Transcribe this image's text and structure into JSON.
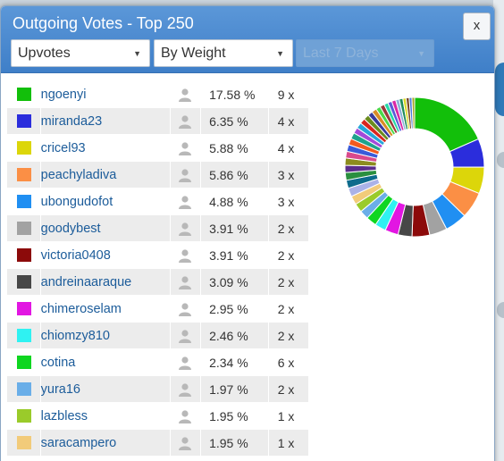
{
  "dialog": {
    "title": "Outgoing Votes - Top 250",
    "close_label": "x",
    "vote_type": "Upvotes",
    "sort_by": "By Weight",
    "period": "Last 7 Days"
  },
  "rows": [
    {
      "name": "ngoenyi",
      "pct": "17.58 %",
      "count": "9 x",
      "color": "#12bf0a"
    },
    {
      "name": "miranda23",
      "pct": "6.35 %",
      "count": "4 x",
      "color": "#2b2ddc"
    },
    {
      "name": "cricel93",
      "pct": "5.88 %",
      "count": "4 x",
      "color": "#dcd60a"
    },
    {
      "name": "peachyladiva",
      "pct": "5.86 %",
      "count": "3 x",
      "color": "#fb8f45"
    },
    {
      "name": "ubongudofot",
      "pct": "4.88 %",
      "count": "3 x",
      "color": "#208ff2"
    },
    {
      "name": "goodybest",
      "pct": "3.91 %",
      "count": "2 x",
      "color": "#a2a2a2"
    },
    {
      "name": "victoria0408",
      "pct": "3.91 %",
      "count": "2 x",
      "color": "#8c0a0a"
    },
    {
      "name": "andreinaaraque",
      "pct": "3.09 %",
      "count": "2 x",
      "color": "#474747"
    },
    {
      "name": "chimeroselam",
      "pct": "2.95 %",
      "count": "2 x",
      "color": "#e216e2"
    },
    {
      "name": "chiomzy810",
      "pct": "2.46 %",
      "count": "2 x",
      "color": "#2ff2f2"
    },
    {
      "name": "cotina",
      "pct": "2.34 %",
      "count": "6 x",
      "color": "#0fd620"
    },
    {
      "name": "yura16",
      "pct": "1.97 %",
      "count": "2 x",
      "color": "#6aaee8"
    },
    {
      "name": "lazbless",
      "pct": "1.95 %",
      "count": "1 x",
      "color": "#9acb2a"
    },
    {
      "name": "saracampero",
      "pct": "1.95 %",
      "count": "1 x",
      "color": "#f2cb7a"
    },
    {
      "name": "",
      "pct": "",
      "count": "",
      "color": "#aab2e8"
    }
  ],
  "chart_data": {
    "type": "pie",
    "values": [
      17.58,
      6.35,
      5.88,
      5.86,
      4.88,
      3.91,
      3.91,
      3.09,
      2.95,
      2.46,
      2.34,
      1.97,
      1.95,
      1.95,
      1.9,
      1.8,
      1.7,
      1.6,
      1.6,
      1.5,
      1.5,
      1.4,
      1.4,
      1.3,
      1.3,
      1.2,
      1.2,
      1.1,
      1.1,
      1.0,
      1.0,
      0.9,
      0.9,
      0.9,
      0.8,
      0.8,
      0.7,
      0.7,
      0.6,
      0.6
    ],
    "colors": [
      "#12bf0a",
      "#2b2ddc",
      "#dcd60a",
      "#fb8f45",
      "#208ff2",
      "#a2a2a2",
      "#8c0a0a",
      "#474747",
      "#e216e2",
      "#2ff2f2",
      "#0fd620",
      "#6aaee8",
      "#9acb2a",
      "#f2cb7a",
      "#aab2e8",
      "#0d6b8c",
      "#2a8f3f",
      "#5b2d8c",
      "#8c8c1f",
      "#d94a8c",
      "#3a5bd9",
      "#f25b1f",
      "#1fa38c",
      "#a34ad9",
      "#26a6d9",
      "#d9261f",
      "#6b8c1f",
      "#3a3a9c",
      "#d98c26",
      "#4ad94a",
      "#9c3a3a",
      "#26d9a6",
      "#5b5bd9",
      "#d926a6",
      "#8cb3d9",
      "#1f8c5b",
      "#d9d926",
      "#7a4a2a",
      "#4a7ad9",
      "#a6a626"
    ]
  }
}
